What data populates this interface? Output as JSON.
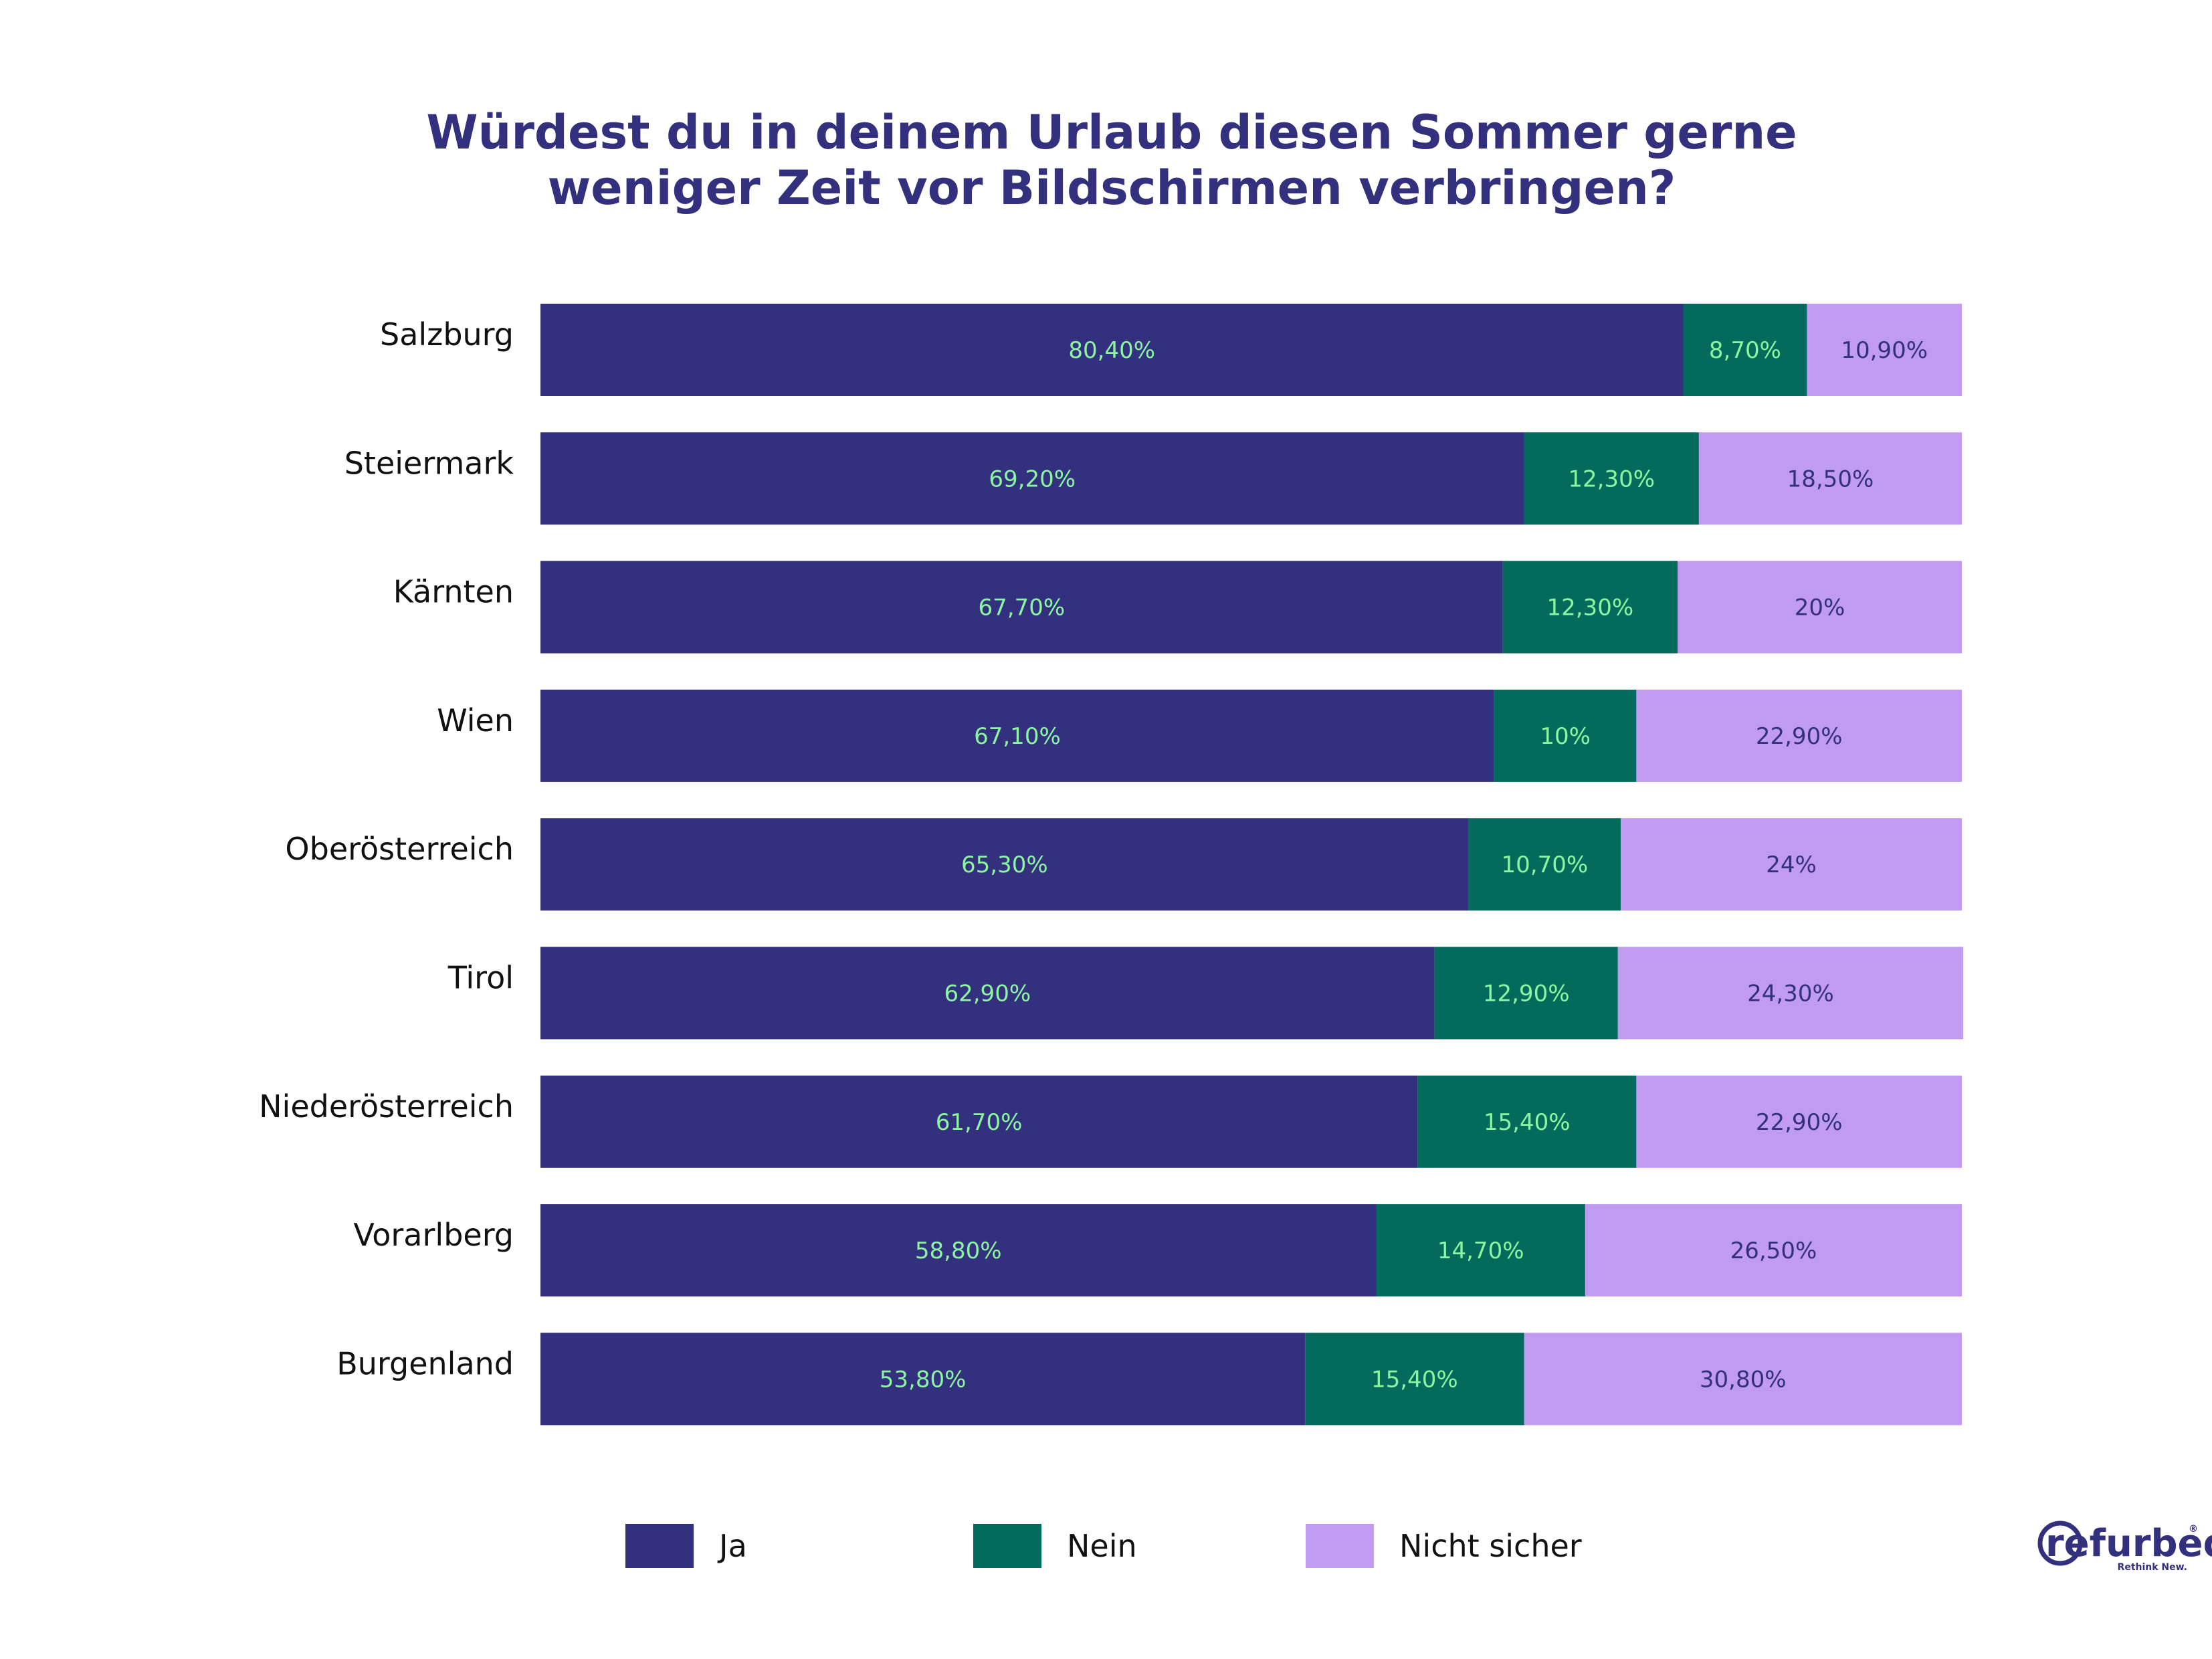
{
  "chart_data": {
    "type": "bar",
    "orientation": "horizontal",
    "stacked": true,
    "title": [
      "Würdest du in deinem Urlaub diesen Sommer gerne",
      "weniger Zeit vor Bildschirmen verbringen?"
    ],
    "categories": [
      "Salzburg",
      "Steiermark",
      "Kärnten",
      "Wien",
      "Oberösterreich",
      "Tirol",
      "Niederösterreich",
      "Vorarlberg",
      "Burgenland"
    ],
    "series": [
      {
        "name": "Ja",
        "color": "#33307d",
        "label_color": "#8cf5a0",
        "values": [
          80.4,
          69.2,
          67.7,
          67.1,
          65.3,
          62.9,
          61.7,
          58.8,
          53.8
        ],
        "labels": [
          "80,40%",
          "69,20%",
          "67,70%",
          "67,10%",
          "65,30%",
          "62,90%",
          "61,70%",
          "58,80%",
          "53,80%"
        ]
      },
      {
        "name": "Nein",
        "color": "#046b5c",
        "label_color": "#8cf5a0",
        "values": [
          8.7,
          12.3,
          12.3,
          10.0,
          10.7,
          12.9,
          15.4,
          14.7,
          15.4
        ],
        "labels": [
          "8,70%",
          "12,30%",
          "12,30%",
          "10%",
          "10,70%",
          "12,90%",
          "15,40%",
          "14,70%",
          "15,40%"
        ]
      },
      {
        "name": "Nicht sicher",
        "color": "#c09bf0",
        "label_color": "#33307d",
        "values": [
          10.9,
          18.5,
          20.0,
          22.9,
          24.0,
          24.3,
          22.9,
          26.5,
          30.8
        ],
        "labels": [
          "10,90%",
          "18,50%",
          "20%",
          "22,90%",
          "24%",
          "24,30%",
          "22,90%",
          "26,50%",
          "30,80%"
        ]
      }
    ],
    "xlim": [
      0,
      100
    ],
    "grid": false,
    "legend_position": "bottom"
  },
  "logo": {
    "main": "refurbed",
    "tagline": "Rethink New.",
    "mark": "®"
  }
}
